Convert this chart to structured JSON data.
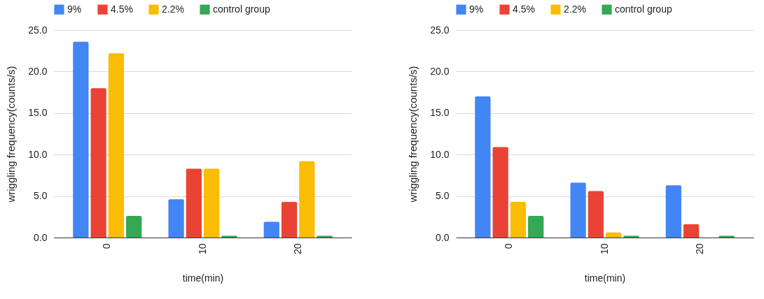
{
  "chart_data": [
    {
      "type": "bar",
      "xlabel": "time(min)",
      "ylabel": "wriggling frequency(counts/s)",
      "categories": [
        "0",
        "10",
        "20"
      ],
      "ylim": [
        0,
        25
      ],
      "yticks": [
        {
          "value": 0,
          "label": "0.0"
        },
        {
          "value": 5,
          "label": "5.0"
        },
        {
          "value": 10,
          "label": "10.0"
        },
        {
          "value": 15,
          "label": "15.0"
        },
        {
          "value": 20,
          "label": "20.0"
        },
        {
          "value": 25,
          "label": "25.0"
        }
      ],
      "grid": "y",
      "legend": "top left",
      "series": [
        {
          "name": "9%",
          "color": "#4285f4",
          "values": [
            23.6,
            4.6,
            1.9
          ]
        },
        {
          "name": "4.5%",
          "color": "#ea4335",
          "values": [
            18.0,
            8.3,
            4.3
          ]
        },
        {
          "name": "2.2%",
          "color": "#fbbc04",
          "values": [
            22.2,
            8.3,
            9.2
          ]
        },
        {
          "name": "control group",
          "color": "#34a853",
          "values": [
            2.6,
            0.2,
            0.2
          ]
        }
      ]
    },
    {
      "type": "bar",
      "xlabel": "time(min)",
      "ylabel": "wriggling frequency(counts/s)",
      "categories": [
        "0",
        "10",
        "20"
      ],
      "ylim": [
        0,
        25
      ],
      "yticks": [
        {
          "value": 0,
          "label": "0.0"
        },
        {
          "value": 5,
          "label": "5.0"
        },
        {
          "value": 10,
          "label": "10.0"
        },
        {
          "value": 15,
          "label": "15.0"
        },
        {
          "value": 20,
          "label": "20.0"
        },
        {
          "value": 25,
          "label": "25.0"
        }
      ],
      "grid": "y",
      "legend": "top left",
      "series": [
        {
          "name": "9%",
          "color": "#4285f4",
          "values": [
            17.0,
            6.6,
            6.3
          ]
        },
        {
          "name": "4.5%",
          "color": "#ea4335",
          "values": [
            10.9,
            5.6,
            1.6
          ]
        },
        {
          "name": "2.2%",
          "color": "#fbbc04",
          "values": [
            4.3,
            0.6,
            null
          ]
        },
        {
          "name": "control group",
          "color": "#34a853",
          "values": [
            2.6,
            0.2,
            0.2
          ]
        }
      ]
    }
  ]
}
